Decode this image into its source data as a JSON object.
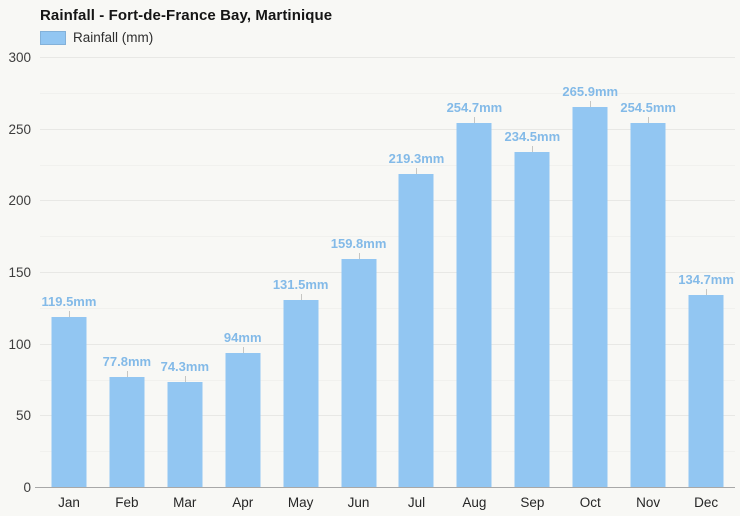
{
  "title": "Rainfall - Fort-de-France Bay, Martinique",
  "legend": {
    "label": "Rainfall (mm)"
  },
  "colors": {
    "bar": "#92c6f2",
    "value_label": "#83bae8",
    "stem": "#c6c6c3",
    "grid_major": "#e8e8e5",
    "grid_minor": "#f1f1ee",
    "axis_line": "#a8a8a8",
    "background": "#f8f8f5"
  },
  "chart_data": {
    "type": "bar",
    "title": "Rainfall - Fort-de-France Bay, Martinique",
    "series_name": "Rainfall (mm)",
    "categories": [
      "Jan",
      "Feb",
      "Mar",
      "Apr",
      "May",
      "Jun",
      "Jul",
      "Aug",
      "Sep",
      "Oct",
      "Nov",
      "Dec"
    ],
    "values": [
      119.5,
      77.8,
      74.3,
      94,
      131.5,
      159.8,
      219.3,
      254.7,
      234.5,
      265.9,
      254.5,
      134.7
    ],
    "value_labels": [
      "119.5mm",
      "77.8mm",
      "74.3mm",
      "94mm",
      "131.5mm",
      "159.8mm",
      "219.3mm",
      "254.7mm",
      "234.5mm",
      "265.9mm",
      "254.5mm",
      "134.7mm"
    ],
    "unit": "mm",
    "xlabel": "",
    "ylabel": "",
    "ylim": [
      0,
      300
    ],
    "yticks": [
      0,
      50,
      100,
      150,
      200,
      250,
      300
    ],
    "minor_grid_step": 25,
    "grid": true,
    "legend_position": "top-left"
  }
}
